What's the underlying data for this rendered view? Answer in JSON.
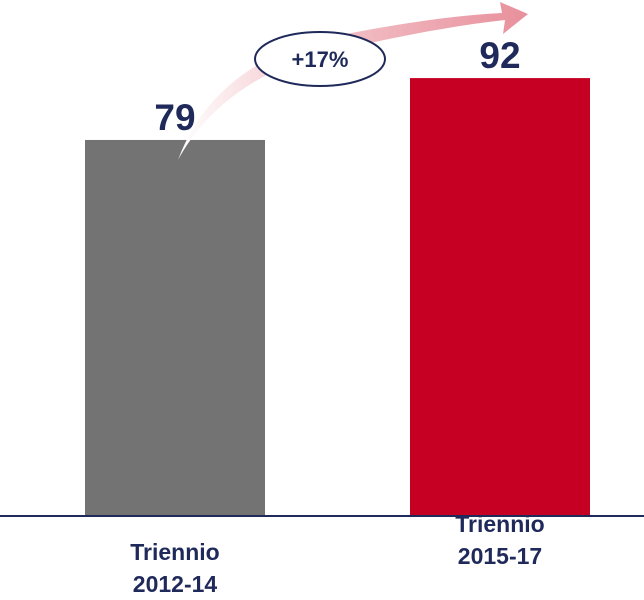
{
  "chart_data": {
    "type": "bar",
    "categories": [
      [
        "Triennio",
        "2012-14"
      ],
      [
        "Triennio",
        "2015-17"
      ]
    ],
    "values": [
      79,
      92
    ],
    "ylim": [
      0,
      100
    ],
    "bar_colors": [
      "#737373",
      "#c50023"
    ],
    "label_color": "#1f2a5a",
    "axis_color": "#1f2a5a",
    "annotation": {
      "text": "+17%",
      "arrow_color": "#e8a0a8"
    }
  }
}
